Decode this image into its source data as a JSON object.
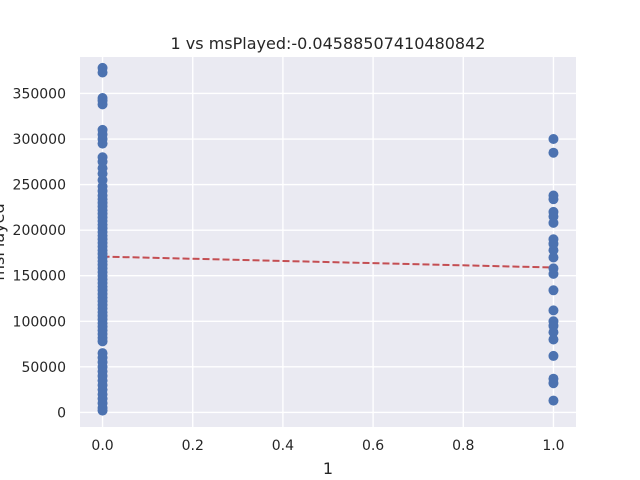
{
  "chart_data": {
    "type": "scatter",
    "title": "1 vs msPlayed:-0.04588507410480842",
    "xlabel": "1",
    "ylabel": "msPlayed",
    "xlim": [
      -0.05,
      1.05
    ],
    "ylim": [
      -16000,
      390000
    ],
    "x_ticks": [
      0.0,
      0.2,
      0.4,
      0.6,
      0.8,
      1.0
    ],
    "x_tick_labels": [
      "0.0",
      "0.2",
      "0.4",
      "0.6",
      "0.8",
      "1.0"
    ],
    "y_ticks": [
      0,
      50000,
      100000,
      150000,
      200000,
      250000,
      300000,
      350000
    ],
    "y_tick_labels": [
      "0",
      "50000",
      "100000",
      "150000",
      "200000",
      "250000",
      "300000",
      "350000"
    ],
    "grid": true,
    "series": [
      {
        "x": 0,
        "y": [
          378000,
          373000,
          345000,
          342000,
          338000,
          310000,
          305000,
          300000,
          295000,
          280000,
          275000,
          268000,
          262000,
          255000,
          248000,
          243000,
          238000,
          234000,
          230000,
          226000,
          222000,
          218000,
          214000,
          210000,
          206000,
          202000,
          198000,
          194000,
          190000,
          186000,
          182000,
          178000,
          174000,
          170000,
          166000,
          162000,
          158000,
          154000,
          150000,
          146000,
          142000,
          138000,
          134000,
          130000,
          126000,
          122000,
          118000,
          114000,
          110000,
          106000,
          102000,
          98000,
          94000,
          90000,
          86000,
          82000,
          78000,
          65000,
          60000,
          55000,
          50000,
          45000,
          40000,
          35000,
          30000,
          25000,
          20000,
          15000,
          10000,
          5000,
          2000
        ]
      },
      {
        "x": 1,
        "y": [
          300000,
          285000,
          238000,
          234000,
          220000,
          215000,
          208000,
          190000,
          185000,
          178000,
          170000,
          158000,
          152000,
          134000,
          112000,
          100000,
          95000,
          88000,
          80000,
          62000,
          37000,
          32000,
          13000
        ]
      }
    ],
    "trend_line": {
      "x": [
        0,
        1
      ],
      "y": [
        171000,
        159000
      ],
      "color": "#c44e52",
      "style": "dashed"
    },
    "point_color": "#4c72b0",
    "background_color": "#eaeaf2"
  }
}
